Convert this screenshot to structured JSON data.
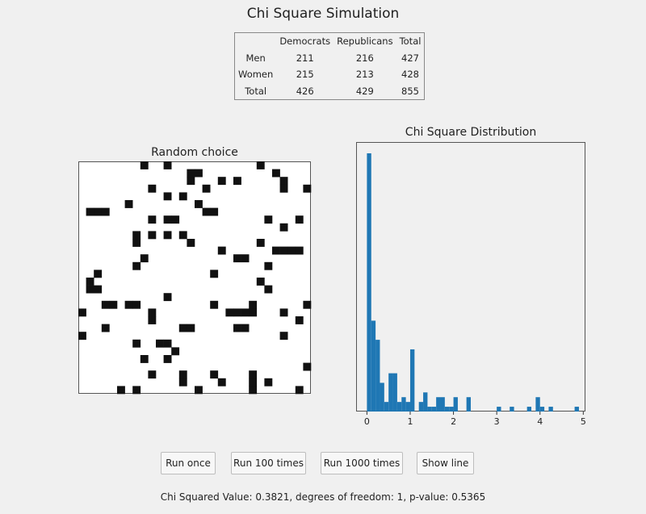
{
  "window": {
    "title": "Chi Square Simulation"
  },
  "table": {
    "headers": [
      "",
      "Democrats",
      "Republicans",
      "Total"
    ],
    "rows": [
      [
        "Men",
        "211",
        "216",
        "427"
      ],
      [
        "Women",
        "215",
        "213",
        "428"
      ],
      [
        "Total",
        "426",
        "429",
        "855"
      ]
    ]
  },
  "grid": {
    "title": "Random choice",
    "size": 30,
    "filled": [
      [
        8,
        0
      ],
      [
        11,
        0
      ],
      [
        23,
        0
      ],
      [
        25,
        1
      ],
      [
        14,
        1
      ],
      [
        15,
        1
      ],
      [
        18,
        2
      ],
      [
        20,
        2
      ],
      [
        26,
        2
      ],
      [
        14,
        2
      ],
      [
        9,
        3
      ],
      [
        16,
        3
      ],
      [
        29,
        3
      ],
      [
        26,
        3
      ],
      [
        13,
        4
      ],
      [
        11,
        4
      ],
      [
        1,
        6
      ],
      [
        2,
        6
      ],
      [
        3,
        6
      ],
      [
        6,
        5
      ],
      [
        15,
        5
      ],
      [
        17,
        6
      ],
      [
        16,
        6
      ],
      [
        9,
        7
      ],
      [
        12,
        7
      ],
      [
        11,
        7
      ],
      [
        24,
        7
      ],
      [
        28,
        7
      ],
      [
        26,
        8
      ],
      [
        7,
        9
      ],
      [
        9,
        9
      ],
      [
        11,
        9
      ],
      [
        13,
        9
      ],
      [
        14,
        10
      ],
      [
        23,
        10
      ],
      [
        7,
        10
      ],
      [
        18,
        11
      ],
      [
        25,
        11
      ],
      [
        26,
        11
      ],
      [
        27,
        11
      ],
      [
        28,
        11
      ],
      [
        20,
        12
      ],
      [
        21,
        12
      ],
      [
        7,
        13
      ],
      [
        24,
        13
      ],
      [
        21,
        12
      ],
      [
        8,
        12
      ],
      [
        17,
        14
      ],
      [
        2,
        14
      ],
      [
        23,
        15
      ],
      [
        1,
        15
      ],
      [
        2,
        16
      ],
      [
        1,
        16
      ],
      [
        24,
        16
      ],
      [
        22,
        18
      ],
      [
        11,
        17
      ],
      [
        3,
        18
      ],
      [
        4,
        18
      ],
      [
        6,
        18
      ],
      [
        7,
        18
      ],
      [
        17,
        18
      ],
      [
        19,
        19
      ],
      [
        20,
        19
      ],
      [
        21,
        19
      ],
      [
        22,
        19
      ],
      [
        0,
        19
      ],
      [
        9,
        19
      ],
      [
        29,
        18
      ],
      [
        26,
        19
      ],
      [
        9,
        20
      ],
      [
        3,
        21
      ],
      [
        13,
        21
      ],
      [
        14,
        21
      ],
      [
        21,
        21
      ],
      [
        28,
        20
      ],
      [
        0,
        22
      ],
      [
        7,
        23
      ],
      [
        26,
        22
      ],
      [
        12,
        24
      ],
      [
        8,
        25
      ],
      [
        11,
        25
      ],
      [
        29,
        26
      ],
      [
        9,
        27
      ],
      [
        13,
        27
      ],
      [
        17,
        27
      ],
      [
        18,
        28
      ],
      [
        22,
        27
      ],
      [
        24,
        28
      ],
      [
        5,
        29
      ],
      [
        7,
        29
      ],
      [
        13,
        28
      ],
      [
        15,
        29
      ],
      [
        22,
        29
      ],
      [
        22,
        28
      ],
      [
        28,
        29
      ],
      [
        15,
        30
      ],
      [
        28,
        30
      ],
      [
        11,
        23
      ],
      [
        10,
        23
      ],
      [
        20,
        21
      ]
    ]
  },
  "histogram": {
    "title": "Chi Square Distribution",
    "xlim": [
      -0.25,
      5.05
    ],
    "xticks": [
      "0",
      "1",
      "2",
      "3",
      "4",
      "5"
    ],
    "bin_width": 0.1,
    "bins": [
      {
        "x": 0.0,
        "count": 54
      },
      {
        "x": 0.1,
        "count": 19
      },
      {
        "x": 0.2,
        "count": 15
      },
      {
        "x": 0.3,
        "count": 6
      },
      {
        "x": 0.4,
        "count": 2
      },
      {
        "x": 0.5,
        "count": 8
      },
      {
        "x": 0.6,
        "count": 8
      },
      {
        "x": 0.7,
        "count": 2
      },
      {
        "x": 0.8,
        "count": 3
      },
      {
        "x": 0.9,
        "count": 2
      },
      {
        "x": 1.0,
        "count": 13
      },
      {
        "x": 1.2,
        "count": 2
      },
      {
        "x": 1.3,
        "count": 4
      },
      {
        "x": 1.4,
        "count": 1
      },
      {
        "x": 1.5,
        "count": 1
      },
      {
        "x": 1.6,
        "count": 3
      },
      {
        "x": 1.7,
        "count": 3
      },
      {
        "x": 1.8,
        "count": 1
      },
      {
        "x": 1.9,
        "count": 1
      },
      {
        "x": 2.0,
        "count": 3
      },
      {
        "x": 2.3,
        "count": 3
      },
      {
        "x": 3.0,
        "count": 1
      },
      {
        "x": 3.3,
        "count": 1
      },
      {
        "x": 3.7,
        "count": 1
      },
      {
        "x": 3.9,
        "count": 3
      },
      {
        "x": 4.0,
        "count": 1
      },
      {
        "x": 4.2,
        "count": 1
      },
      {
        "x": 4.8,
        "count": 1
      }
    ],
    "bar_color": "#1f77b4"
  },
  "buttons": {
    "run_once": "Run once",
    "run_100": "Run 100 times",
    "run_1000": "Run 1000 times",
    "show_line": "Show line"
  },
  "status": "Chi Squared Value: 0.3821, degrees of freedom: 1, p-value: 0.5365"
}
